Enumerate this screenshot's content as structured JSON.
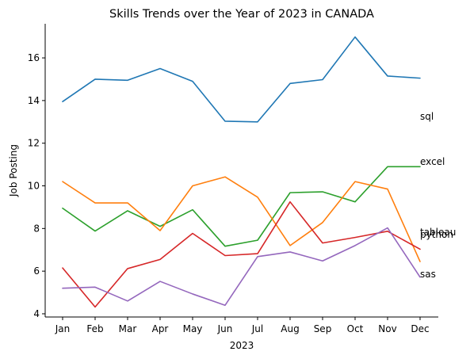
{
  "chart_data": {
    "type": "line",
    "title": "Skills Trends over the Year of 2023 in CANADA",
    "xlabel": "2023",
    "ylabel": "Job Posting",
    "categories": [
      "Jan",
      "Feb",
      "Mar",
      "Apr",
      "May",
      "Jun",
      "Jul",
      "Aug",
      "Sep",
      "Oct",
      "Nov",
      "Dec"
    ],
    "ylim": [
      3.85,
      17.6
    ],
    "yticks": [
      4,
      6,
      8,
      10,
      12,
      14,
      16
    ],
    "grid": false,
    "legend": "none",
    "series": [
      {
        "name": "sql",
        "color": "#1f77b4",
        "values": [
          13.95,
          15.0,
          14.95,
          15.5,
          14.9,
          13.03,
          13.0,
          14.8,
          14.98,
          16.98,
          15.15,
          15.05
        ]
      },
      {
        "name": "excel",
        "color": "#2ca02c",
        "values": [
          8.95,
          7.88,
          8.83,
          8.1,
          8.88,
          7.17,
          7.45,
          9.68,
          9.72,
          9.25,
          10.9,
          10.9
        ]
      },
      {
        "name": "tableau",
        "color": "#ff7f0e",
        "values": [
          10.2,
          9.2,
          9.2,
          7.9,
          10.0,
          10.42,
          9.47,
          7.2,
          8.28,
          10.2,
          9.85,
          6.45
        ]
      },
      {
        "name": "python",
        "color": "#d62728",
        "values": [
          6.15,
          4.32,
          6.12,
          6.55,
          7.77,
          6.73,
          6.82,
          9.25,
          7.32,
          7.58,
          7.87,
          7.03
        ]
      },
      {
        "name": "sas",
        "color": "#9467bd",
        "values": [
          5.2,
          5.25,
          4.6,
          5.52,
          4.93,
          4.4,
          6.68,
          6.9,
          6.48,
          7.2,
          8.03,
          5.72
        ]
      }
    ],
    "line_labels": [
      {
        "text": "sql",
        "y": 13.25
      },
      {
        "text": "excel",
        "y": 11.13
      },
      {
        "text": "tableau",
        "y": 7.83
      },
      {
        "text": "python",
        "y": 7.72
      },
      {
        "text": "sas",
        "y": 5.85
      }
    ]
  }
}
